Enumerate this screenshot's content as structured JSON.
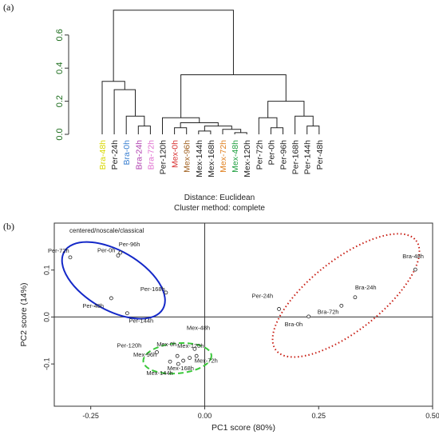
{
  "panels": {
    "a": "(a)",
    "b": "(b)"
  },
  "dendrogram": {
    "y_ticks": [
      "0.0",
      "0.2",
      "0.4",
      "0.6"
    ],
    "y_tick_values": [
      0.0,
      0.2,
      0.4,
      0.6
    ],
    "leaves": [
      {
        "label": "Bra-48h",
        "color": "#d8d800"
      },
      {
        "label": "Per-24h",
        "color": "#222222"
      },
      {
        "label": "Bra-0h",
        "color": "#3a7fd0"
      },
      {
        "label": "Bra-24h",
        "color": "#b040b0"
      },
      {
        "label": "Bra-72h",
        "color": "#e070d0"
      },
      {
        "label": "Per-120h",
        "color": "#222222"
      },
      {
        "label": "Mex-0h",
        "color": "#d83030"
      },
      {
        "label": "Mex-96h",
        "color": "#a06020"
      },
      {
        "label": "Mex-144h",
        "color": "#222222"
      },
      {
        "label": "Mex-168h",
        "color": "#222222"
      },
      {
        "label": "Mex-72h",
        "color": "#e08020"
      },
      {
        "label": "Mex-48h",
        "color": "#20a040"
      },
      {
        "label": "Mex-120h",
        "color": "#222222"
      },
      {
        "label": "Per-72h",
        "color": "#222222"
      },
      {
        "label": "Per-0h",
        "color": "#222222"
      },
      {
        "label": "Per-96h",
        "color": "#222222"
      },
      {
        "label": "Per-168h",
        "color": "#222222"
      },
      {
        "label": "Per-144h",
        "color": "#222222"
      },
      {
        "label": "Per-48h",
        "color": "#222222"
      }
    ],
    "distance_label": "Distance: Euclidean",
    "method_label": "Cluster method: complete"
  },
  "chart_data": {
    "type": "scatter",
    "subtitle": "centered/noscale/classical",
    "xlabel": "PC1 score (80%)",
    "ylabel": "PC2 score (14%)",
    "xlim": [
      -0.33,
      0.5
    ],
    "ylim": [
      -0.19,
      0.2
    ],
    "x_ticks": [
      "-0.25",
      "0.00",
      "0.25",
      "0.50"
    ],
    "y_ticks": [
      "-0.1",
      "0.0",
      "0.1"
    ],
    "points": [
      {
        "label": "Per-72h",
        "x": -0.295,
        "y": 0.127
      },
      {
        "label": "Per-96h",
        "x": -0.185,
        "y": 0.137
      },
      {
        "label": "Per-0h",
        "x": -0.19,
        "y": 0.131
      },
      {
        "label": "Per-48h",
        "x": -0.205,
        "y": 0.04
      },
      {
        "label": "Per-144h",
        "x": -0.17,
        "y": 0.008
      },
      {
        "label": "Per-168h",
        "x": -0.085,
        "y": 0.052
      },
      {
        "label": "Per-24h",
        "x": 0.163,
        "y": 0.017
      },
      {
        "label": "Bra-48h",
        "x": 0.462,
        "y": 0.101
      },
      {
        "label": "Bra-24h",
        "x": 0.33,
        "y": 0.042
      },
      {
        "label": "Bra-72h",
        "x": 0.3,
        "y": 0.024
      },
      {
        "label": "Bra-0h",
        "x": 0.228,
        "y": 0.001
      },
      {
        "label": "Per-120h",
        "x": -0.105,
        "y": -0.075
      },
      {
        "label": "Mex-0h",
        "x": -0.06,
        "y": -0.083
      },
      {
        "label": "Mex-96h",
        "x": -0.076,
        "y": -0.095
      },
      {
        "label": "Mex-144h",
        "x": -0.058,
        "y": -0.1
      },
      {
        "label": "Mex-120h",
        "x": -0.018,
        "y": -0.083
      },
      {
        "label": "Mex-48h",
        "x": -0.022,
        "y": -0.068
      },
      {
        "label": "Mex-72h",
        "x": -0.033,
        "y": -0.087
      },
      {
        "label": "Mex-168h",
        "x": -0.047,
        "y": -0.093
      }
    ],
    "ellipse_colors": {
      "blue": "#1428c8",
      "green": "#3ac83a",
      "red": "#c81e14"
    }
  }
}
